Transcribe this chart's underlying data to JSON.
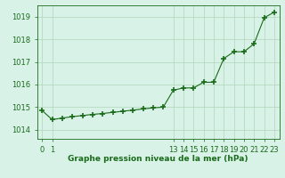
{
  "x": [
    0,
    1,
    2,
    3,
    4,
    5,
    6,
    7,
    8,
    9,
    10,
    11,
    12,
    13,
    14,
    15,
    16,
    17,
    18,
    19,
    20,
    21,
    22,
    23
  ],
  "y": [
    1014.85,
    1014.45,
    1014.52,
    1014.58,
    1014.63,
    1014.68,
    1014.72,
    1014.77,
    1014.82,
    1014.87,
    1014.92,
    1014.97,
    1015.0,
    1015.75,
    1015.85,
    1015.85,
    1016.1,
    1016.1,
    1017.15,
    1017.45,
    1017.45,
    1017.8,
    1018.95,
    1019.2
  ],
  "line_color": "#1a6b1a",
  "marker_color": "#1a6b1a",
  "bg_color": "#d8f2e8",
  "grid_color": "#b0d4b8",
  "ylim": [
    1013.6,
    1019.5
  ],
  "yticks": [
    1014,
    1015,
    1016,
    1017,
    1018,
    1019
  ],
  "xlabel": "Graphe pression niveau de la mer (hPa)",
  "xlabel_color": "#1a6b1a",
  "tick_color": "#1a6b1a",
  "axis_color": "#1a6b1a",
  "tick_fontsize": 6,
  "xlabel_fontsize": 6.5
}
